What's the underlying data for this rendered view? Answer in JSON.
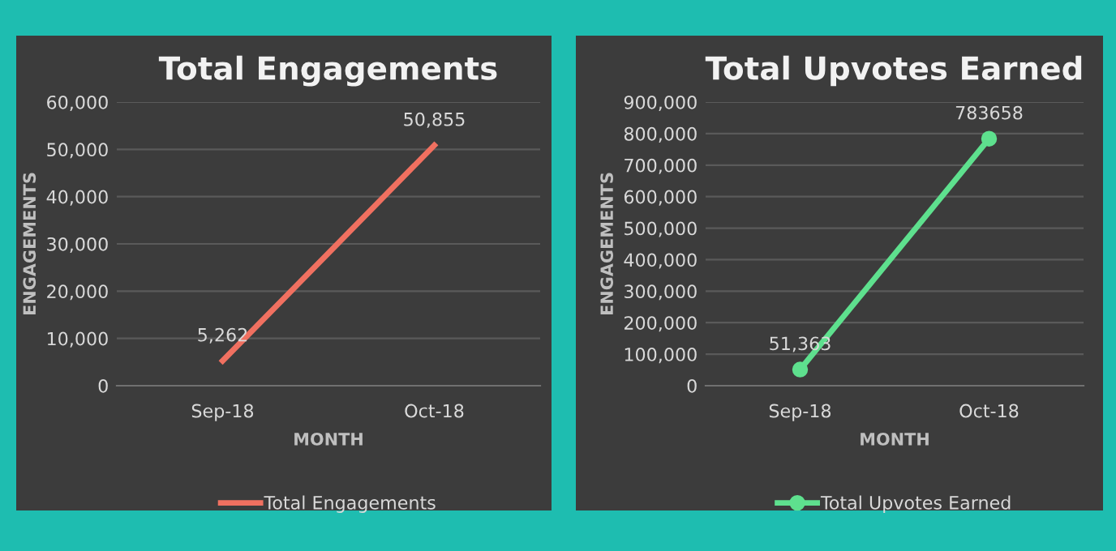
{
  "chart_data": [
    {
      "type": "line",
      "title": "Total Engagements",
      "xlabel": "MONTH",
      "ylabel": "ENGAGEMENTS",
      "categories": [
        "Sep-18",
        "Oct-18"
      ],
      "series": [
        {
          "name": "Total Engagements",
          "color": "#f07060",
          "values": [
            5262,
            50855
          ],
          "value_labels": [
            "5,262",
            "50,855"
          ],
          "marker": "none"
        }
      ],
      "ylim": [
        0,
        60000
      ],
      "yticks": [
        {
          "value": 0,
          "label": "0"
        },
        {
          "value": 10000,
          "label": "10,000"
        },
        {
          "value": 20000,
          "label": "20,000"
        },
        {
          "value": 30000,
          "label": "30,000"
        },
        {
          "value": 40000,
          "label": "40,000"
        },
        {
          "value": 50000,
          "label": "50,000"
        },
        {
          "value": 60000,
          "label": "60,000"
        }
      ],
      "grid": "y",
      "legend": "bottom"
    },
    {
      "type": "line",
      "title": "Total Upvotes Earned",
      "xlabel": "MONTH",
      "ylabel": "ENGAGEMENTS",
      "categories": [
        "Sep-18",
        "Oct-18"
      ],
      "series": [
        {
          "name": "Total Upvotes Earned",
          "color": "#5ee08e",
          "values": [
            51363,
            783658
          ],
          "value_labels": [
            "51,363",
            "783658"
          ],
          "marker": "circle"
        }
      ],
      "ylim": [
        0,
        900000
      ],
      "yticks": [
        {
          "value": 0,
          "label": "0"
        },
        {
          "value": 100000,
          "label": "100,000"
        },
        {
          "value": 200000,
          "label": "200,000"
        },
        {
          "value": 300000,
          "label": "300,000"
        },
        {
          "value": 400000,
          "label": "400,000"
        },
        {
          "value": 500000,
          "label": "500,000"
        },
        {
          "value": 600000,
          "label": "600,000"
        },
        {
          "value": 700000,
          "label": "700,000"
        },
        {
          "value": 800000,
          "label": "800,000"
        },
        {
          "value": 900000,
          "label": "900,000"
        }
      ],
      "grid": "y",
      "legend": "bottom"
    }
  ]
}
